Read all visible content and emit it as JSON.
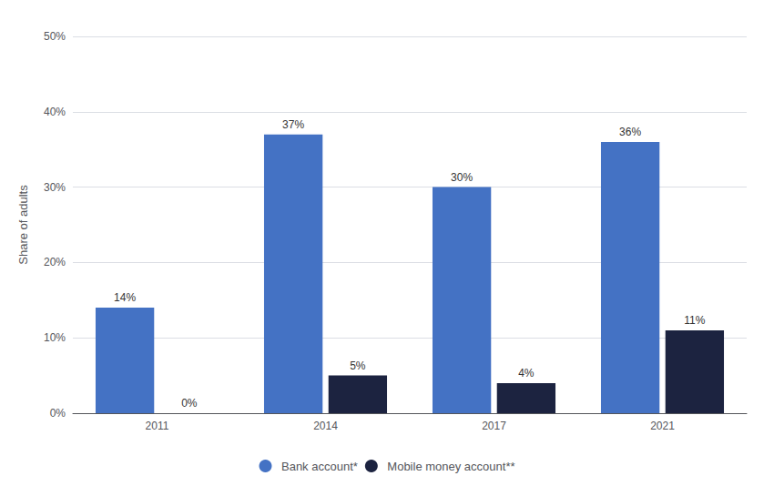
{
  "chart_data": {
    "type": "bar",
    "categories": [
      "2011",
      "2014",
      "2017",
      "2021"
    ],
    "series": [
      {
        "name": "Bank account*",
        "color": "#4472C4",
        "values": [
          14,
          37,
          30,
          36
        ],
        "value_labels": [
          "14%",
          "37%",
          "30%",
          "36%"
        ]
      },
      {
        "name": "Mobile money account**",
        "color": "#1C2340",
        "values": [
          0,
          5,
          4,
          11
        ],
        "value_labels": [
          "0%",
          "5%",
          "4%",
          "11%"
        ]
      }
    ],
    "ylabel": "Share of adults",
    "ylim": [
      0,
      50
    ],
    "yticks": [
      {
        "value": 0,
        "label": "0%"
      },
      {
        "value": 10,
        "label": "10%"
      },
      {
        "value": 20,
        "label": "20%"
      },
      {
        "value": 30,
        "label": "30%"
      },
      {
        "value": 40,
        "label": "40%"
      },
      {
        "value": 50,
        "label": "50%"
      }
    ],
    "grid": true,
    "legend": "bottom",
    "data_labels": true
  }
}
